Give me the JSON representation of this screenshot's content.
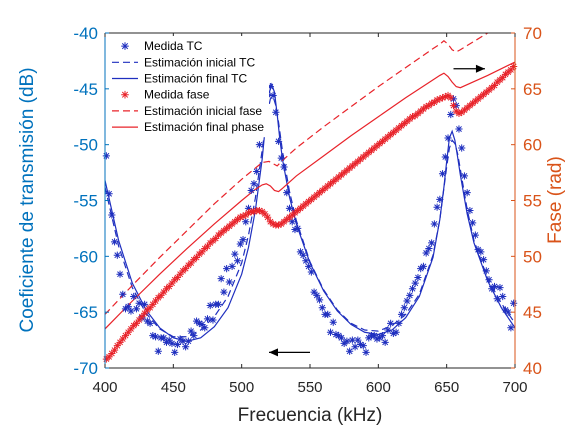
{
  "chart_data": {
    "type": "line",
    "xlabel": "Frecuencia (kHz)",
    "ylabel_left": "Coeficiente de transmisión (dB)",
    "ylabel_right": "Fase (rad)",
    "xlim": [
      400,
      700
    ],
    "ylim_left": [
      -70,
      -40
    ],
    "ylim_right": [
      40,
      70
    ],
    "xticks": [
      "400",
      "450",
      "500",
      "550",
      "600",
      "650",
      "700"
    ],
    "yticks_left": [
      "-70",
      "-65",
      "-60",
      "-55",
      "-50",
      "-45",
      "-40"
    ],
    "yticks_right": [
      "40",
      "45",
      "50",
      "55",
      "60",
      "65",
      "70"
    ],
    "legend_position": "top-left",
    "colors": {
      "left_axis": "#0072bd",
      "right_axis": "#d95319",
      "tc_series": "#1f2fbf",
      "phase_series": "#e8232a"
    },
    "series": [
      {
        "name": "Medida TC",
        "axis": "left",
        "style": "markers",
        "marker": "*",
        "x": [
          401,
          403,
          405,
          407,
          409,
          411,
          413,
          415,
          417,
          419,
          421,
          423,
          425,
          427,
          429,
          431,
          433,
          435,
          437,
          439,
          441,
          443,
          445,
          447,
          449,
          451,
          453,
          455,
          457,
          459,
          461,
          463,
          465,
          467,
          469,
          471,
          473,
          475,
          477,
          479,
          481,
          483,
          485,
          487,
          489,
          491,
          493,
          495,
          497,
          499,
          501,
          503,
          505,
          507,
          509,
          511,
          513,
          515,
          517,
          519,
          521,
          523,
          525,
          527,
          529,
          531,
          533,
          535,
          537,
          539,
          541,
          543,
          545,
          547,
          549,
          551,
          553,
          555,
          557,
          559,
          561,
          563,
          565,
          567,
          569,
          571,
          573,
          575,
          577,
          579,
          581,
          583,
          585,
          587,
          589,
          591,
          593,
          595,
          597,
          599,
          601,
          603,
          605,
          607,
          609,
          611,
          613,
          615,
          617,
          619,
          621,
          623,
          625,
          627,
          629,
          631,
          633,
          635,
          637,
          639,
          641,
          643,
          645,
          647,
          649,
          651,
          653,
          655,
          657,
          659,
          661,
          663,
          665,
          667,
          669,
          671,
          673,
          675,
          677,
          679,
          681,
          683,
          685,
          687,
          689,
          691,
          693,
          695,
          697,
          699
        ],
        "y": [
          -51.0,
          -54.4,
          -56.3,
          -58.7,
          -59.9,
          -61.6,
          -63.4,
          -64.7,
          -64.5,
          -64.9,
          -63.6,
          -64.7,
          -64.2,
          -65.5,
          -64.3,
          -65.8,
          -66.0,
          -67.1,
          -67.2,
          -68.5,
          -67.3,
          -67.3,
          -67.7,
          -67.5,
          -67.8,
          -68.6,
          -67.9,
          -67.4,
          -67.6,
          -68.1,
          -67.6,
          -66.7,
          -67.1,
          -65.8,
          -66.0,
          -66.1,
          -66.4,
          -65.6,
          -64.4,
          -65.7,
          -64.3,
          -64.3,
          -62.0,
          -63.2,
          -61.1,
          -62.3,
          -60.9,
          -59.8,
          -60.4,
          -58.9,
          -58.5,
          -56.9,
          -55.7,
          -54.1,
          -53.5,
          -52.4,
          -50.0,
          -48.9,
          -47.3,
          -45.5,
          -44.8,
          -45.6,
          -47.1,
          -49.7,
          -51.2,
          -52.0,
          -54.3,
          -55.7,
          -56.9,
          -57.6,
          -57.5,
          -59.6,
          -59.9,
          -60.4,
          -60.9,
          -61.4,
          -63.2,
          -63.5,
          -63.9,
          -64.6,
          -65.2,
          -65.2,
          -66.8,
          -65.9,
          -67.0,
          -67.1,
          -67.3,
          -67.8,
          -67.6,
          -68.5,
          -67.5,
          -68.1,
          -67.5,
          -67.9,
          -68.0,
          -68.6,
          -67.3,
          -67.1,
          -67.1,
          -67.4,
          -67.3,
          -67.1,
          -67.7,
          -66.6,
          -66.0,
          -66.9,
          -66.8,
          -66.0,
          -65.2,
          -64.6,
          -64.0,
          -63.5,
          -62.9,
          -62.4,
          -61.9,
          -61.1,
          -60.9,
          -59.7,
          -59.3,
          -58.8,
          -57.1,
          -55.6,
          -54.9,
          -52.6,
          -51.1,
          -49.4,
          -47.3,
          -45.9,
          -46.5,
          -48.6,
          -50.3,
          -52.8,
          -54.3,
          -55.9,
          -57.0,
          -58.1,
          -59.4,
          -59.6,
          -60.3,
          -61.3,
          -62.1,
          -62.9,
          -62.7,
          -63.8,
          -62.8,
          -63.6,
          -64.8,
          -65.0,
          -66.4,
          -64.2
        ]
      },
      {
        "name": "Estimación inicial TC",
        "axis": "left",
        "style": "dashed",
        "x": [
          400,
          410,
          420,
          430,
          440,
          450,
          460,
          470,
          480,
          490,
          500,
          505,
          510,
          515,
          518,
          521,
          523,
          525,
          527,
          530,
          535,
          540,
          550,
          560,
          570,
          580,
          590,
          600,
          610,
          620,
          630,
          640,
          645,
          650,
          652,
          654,
          656,
          658,
          660,
          665,
          670,
          680,
          690,
          700
        ],
        "y": [
          -53.8,
          -59.1,
          -62.8,
          -65.1,
          -66.5,
          -67.2,
          -67.2,
          -66.6,
          -65.4,
          -63.6,
          -60.6,
          -58.1,
          -54.8,
          -50.5,
          -47.7,
          -45.9,
          -45.7,
          -46.5,
          -48.0,
          -50.7,
          -54.2,
          -56.8,
          -60.5,
          -63.0,
          -64.8,
          -66.0,
          -66.6,
          -66.7,
          -66.2,
          -65.2,
          -63.4,
          -59.9,
          -56.7,
          -52.0,
          -50.3,
          -49.6,
          -49.9,
          -50.8,
          -52.2,
          -55.8,
          -58.6,
          -62.0,
          -64.2,
          -66.0
        ]
      },
      {
        "name": "Estimación final TC",
        "axis": "left",
        "style": "solid",
        "x": [
          400,
          410,
          420,
          430,
          440,
          450,
          460,
          470,
          480,
          490,
          500,
          505,
          510,
          515,
          518,
          520,
          522,
          524,
          526,
          528,
          530,
          535,
          540,
          550,
          560,
          570,
          580,
          590,
          600,
          610,
          620,
          630,
          640,
          645,
          648,
          650,
          652,
          654,
          656,
          658,
          660,
          665,
          670,
          680,
          690,
          700
        ],
        "y": [
          -53.2,
          -58.6,
          -62.4,
          -64.8,
          -66.4,
          -67.3,
          -67.6,
          -67.3,
          -66.3,
          -64.6,
          -61.6,
          -59.2,
          -55.9,
          -51.3,
          -47.5,
          -45.4,
          -44.6,
          -45.3,
          -47.3,
          -49.6,
          -51.4,
          -54.7,
          -57.1,
          -60.6,
          -63.1,
          -64.9,
          -66.1,
          -66.8,
          -67.0,
          -66.6,
          -65.5,
          -63.6,
          -60.1,
          -56.7,
          -53.8,
          -51.5,
          -49.4,
          -48.8,
          -49.6,
          -51.1,
          -52.7,
          -56.2,
          -58.8,
          -62.2,
          -64.6,
          -66.4
        ]
      },
      {
        "name": "Medida fase",
        "axis": "right",
        "style": "markers",
        "marker": "*",
        "x": [
          401,
          403,
          405,
          407,
          409,
          411,
          413,
          415,
          417,
          419,
          421,
          423,
          425,
          427,
          429,
          431,
          433,
          435,
          437,
          439,
          441,
          443,
          445,
          447,
          449,
          451,
          453,
          455,
          457,
          459,
          461,
          463,
          465,
          467,
          469,
          471,
          473,
          475,
          477,
          479,
          481,
          483,
          485,
          487,
          489,
          491,
          493,
          495,
          497,
          499,
          501,
          503,
          505,
          507,
          509,
          511,
          513,
          515,
          517,
          519,
          521,
          523,
          525,
          527,
          529,
          531,
          533,
          535,
          537,
          539,
          541,
          543,
          545,
          547,
          549,
          551,
          553,
          555,
          557,
          559,
          561,
          563,
          565,
          567,
          569,
          571,
          573,
          575,
          577,
          579,
          581,
          583,
          585,
          587,
          589,
          591,
          593,
          595,
          597,
          599,
          601,
          603,
          605,
          607,
          609,
          611,
          613,
          615,
          617,
          619,
          621,
          623,
          625,
          627,
          629,
          631,
          633,
          635,
          637,
          639,
          641,
          643,
          645,
          647,
          649,
          651,
          653,
          655,
          657,
          659,
          661,
          663,
          665,
          667,
          669,
          671,
          673,
          675,
          677,
          679,
          681,
          683,
          685,
          687,
          689,
          691,
          693,
          695,
          697,
          699
        ],
        "y": [
          40.8,
          41.0,
          41.3,
          41.6,
          42.0,
          42.3,
          42.6,
          42.9,
          43.2,
          43.5,
          43.8,
          44.0,
          44.3,
          44.6,
          44.9,
          45.2,
          45.4,
          45.7,
          46.0,
          46.3,
          46.5,
          46.8,
          47.1,
          47.3,
          47.6,
          47.9,
          48.1,
          48.4,
          48.7,
          48.9,
          49.2,
          49.4,
          49.7,
          49.9,
          50.2,
          50.4,
          50.7,
          50.9,
          51.2,
          51.4,
          51.6,
          51.9,
          52.1,
          52.3,
          52.5,
          52.7,
          52.9,
          53.1,
          53.3,
          53.5,
          53.6,
          53.7,
          53.9,
          54.0,
          54.0,
          54.1,
          54.1,
          54.0,
          53.8,
          53.5,
          53.1,
          52.9,
          52.8,
          52.8,
          52.9,
          53.1,
          53.3,
          53.5,
          53.7,
          53.9,
          54.1,
          54.3,
          54.5,
          54.7,
          54.9,
          55.1,
          55.3,
          55.5,
          55.7,
          55.9,
          56.1,
          56.3,
          56.5,
          56.7,
          56.9,
          57.1,
          57.3,
          57.5,
          57.7,
          57.9,
          58.1,
          58.3,
          58.5,
          58.7,
          58.9,
          59.1,
          59.3,
          59.5,
          59.7,
          59.9,
          60.1,
          60.3,
          60.5,
          60.7,
          60.9,
          61.1,
          61.3,
          61.5,
          61.7,
          61.9,
          62.1,
          62.3,
          62.5,
          62.6,
          62.8,
          63.0,
          63.2,
          63.4,
          63.5,
          63.7,
          63.8,
          64.0,
          64.1,
          64.2,
          64.3,
          64.4,
          64.2,
          63.5,
          63.0,
          62.8,
          62.9,
          63.1,
          63.3,
          63.5,
          63.7,
          63.9,
          64.1,
          64.3,
          64.5,
          64.7,
          64.9,
          65.1,
          65.3,
          65.6,
          65.8,
          66.0,
          66.3,
          66.5,
          66.7,
          67.0
        ]
      },
      {
        "name": "Estimación inicial fase",
        "axis": "right",
        "style": "dashed",
        "x": [
          400,
          420,
          440,
          460,
          480,
          500,
          510,
          515,
          520,
          523,
          526,
          530,
          540,
          560,
          580,
          600,
          620,
          640,
          645,
          648,
          651,
          654,
          657,
          660,
          680,
          700
        ],
        "y": [
          44.8,
          47.4,
          49.9,
          52.3,
          54.7,
          56.9,
          57.9,
          58.4,
          58.5,
          58.3,
          58.1,
          58.6,
          59.7,
          61.6,
          63.4,
          65.2,
          66.9,
          68.6,
          69.0,
          69.3,
          69.0,
          68.5,
          68.3,
          68.5,
          70.0,
          71.4
        ]
      },
      {
        "name": "Estimación final phase",
        "axis": "right",
        "style": "solid",
        "x": [
          400,
          420,
          440,
          460,
          480,
          500,
          510,
          515,
          518,
          521,
          524,
          527,
          530,
          540,
          560,
          580,
          600,
          620,
          640,
          645,
          648,
          651,
          654,
          657,
          660,
          680,
          700
        ],
        "y": [
          43.5,
          46.0,
          48.4,
          50.7,
          52.9,
          55.0,
          56.0,
          56.4,
          56.5,
          56.3,
          55.9,
          55.8,
          56.1,
          57.2,
          59.0,
          60.8,
          62.5,
          64.2,
          65.8,
          66.2,
          66.4,
          66.1,
          65.6,
          65.2,
          65.1,
          66.2,
          67.4
        ]
      }
    ]
  }
}
